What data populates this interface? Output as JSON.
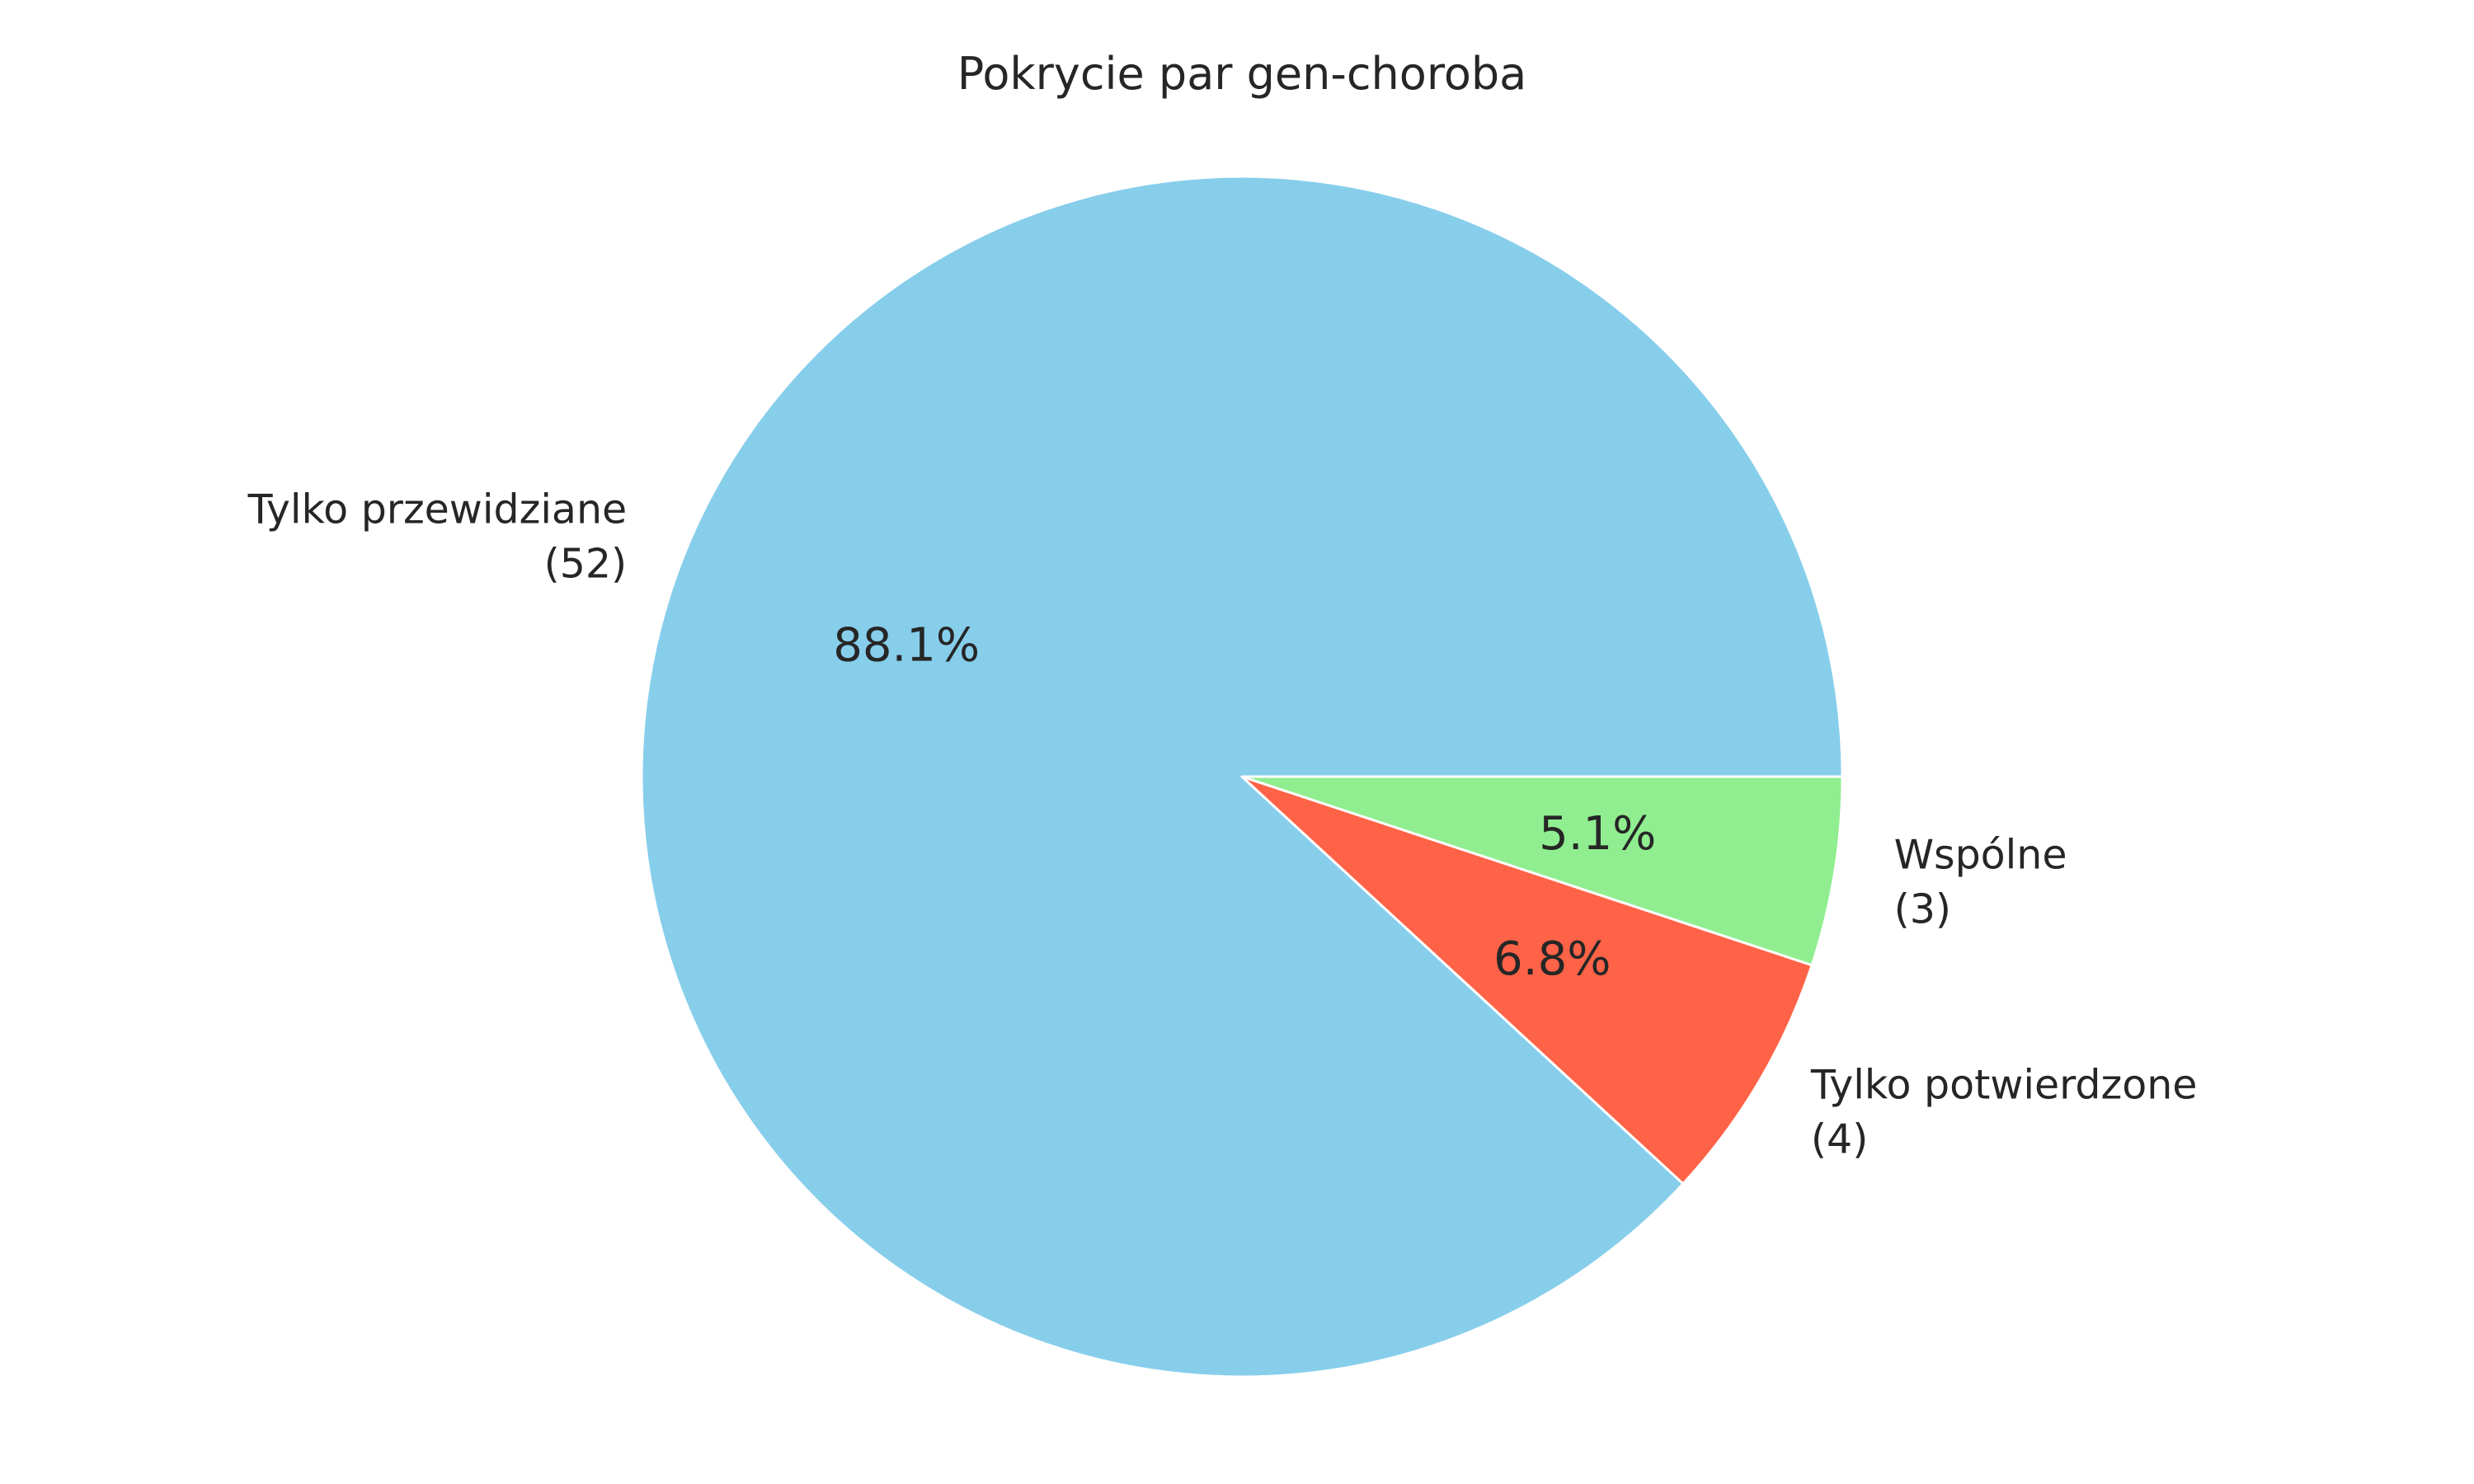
{
  "chart_data": {
    "type": "pie",
    "title": "Pokrycie par gen-choroba",
    "slices": [
      {
        "label": "Tylko przewidziane",
        "count": "(52)",
        "value": 52,
        "percent_label": "88.1%",
        "color": "#87CEEB"
      },
      {
        "label": "Tylko potwierdzone",
        "count": "(4)",
        "value": 4,
        "percent_label": "6.8%",
        "color": "#FF6347"
      },
      {
        "label": "Wspólne",
        "count": "(3)",
        "value": 3,
        "percent_label": "5.1%",
        "color": "#90EE90"
      }
    ],
    "start_angle_deg": 0,
    "direction": "counterclockwise",
    "slice_edge_color": "#ffffff"
  }
}
